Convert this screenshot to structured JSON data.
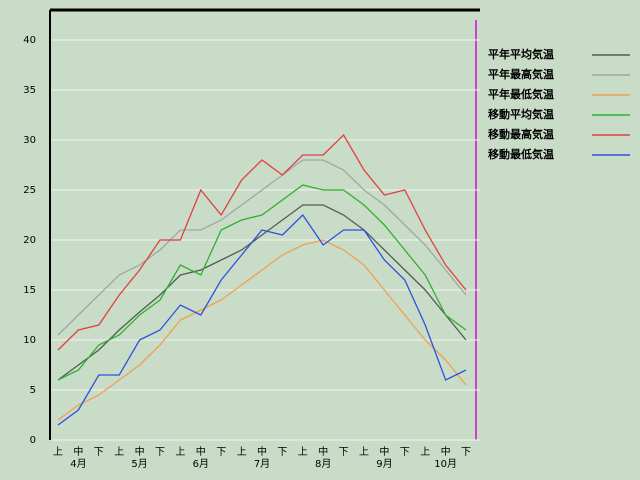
{
  "chart_data": {
    "type": "line",
    "categories": [
      "上",
      "中",
      "下",
      "上",
      "中",
      "下",
      "上",
      "中",
      "下",
      "上",
      "中",
      "下",
      "上",
      "中",
      "下",
      "上",
      "中",
      "下",
      "上",
      "中",
      "下"
    ],
    "groups": [
      "4月",
      "5月",
      "6月",
      "7月",
      "8月",
      "9月",
      "10月"
    ],
    "ylim": [
      0,
      40
    ],
    "yticks": [
      0,
      5,
      10,
      15,
      20,
      25,
      30,
      35,
      40
    ],
    "grid": true,
    "legend": "right",
    "series": [
      {
        "name": "平年平均気温",
        "color": "#4f5f4f",
        "values": [
          6,
          7.5,
          9,
          11,
          12.8,
          14.5,
          16.5,
          17,
          18,
          19,
          20.5,
          22,
          23.5,
          23.5,
          22.5,
          21,
          19,
          17,
          15,
          12.5,
          10
        ]
      },
      {
        "name": "平年最高気温",
        "color": "#a0a8a0",
        "values": [
          10.5,
          12.5,
          14.5,
          16.5,
          17.5,
          19,
          21,
          21,
          22,
          23.5,
          25,
          26.5,
          28,
          28,
          27,
          25,
          23.5,
          21.5,
          19.5,
          17,
          14.5
        ]
      },
      {
        "name": "平年最低気温",
        "color": "#f0a050",
        "values": [
          2,
          3.5,
          4.5,
          6,
          7.5,
          9.5,
          12,
          13,
          14,
          15.5,
          17,
          18.5,
          19.5,
          20,
          19,
          17.5,
          15,
          12.5,
          10,
          8,
          5.5
        ]
      },
      {
        "name": "移動平均気温",
        "color": "#30b030",
        "values": [
          6,
          7,
          9.5,
          10.5,
          12.5,
          14,
          17.5,
          16.5,
          21,
          22,
          22.5,
          24,
          25.5,
          25,
          25,
          23.5,
          21.5,
          19,
          16.5,
          12.5,
          11
        ]
      },
      {
        "name": "移動最高気温",
        "color": "#e04040",
        "values": [
          9,
          11,
          11.5,
          14.5,
          17,
          20,
          20,
          25,
          22.5,
          26,
          28,
          26.5,
          28.5,
          28.5,
          30.5,
          27,
          24.5,
          25,
          21,
          17.5,
          15
        ]
      },
      {
        "name": "移動最低気温",
        "color": "#3050e0",
        "values": [
          1.5,
          3,
          6.5,
          6.5,
          10,
          11,
          13.5,
          12.5,
          16,
          18.5,
          21,
          20.5,
          22.5,
          19.5,
          21,
          21,
          18,
          16,
          11.5,
          6,
          7
        ]
      }
    ]
  }
}
